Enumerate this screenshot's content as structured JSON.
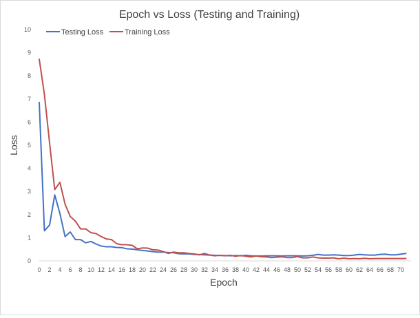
{
  "chart_data": {
    "type": "line",
    "title": "Epoch vs Loss (Testing and Training)",
    "xlabel": "Epoch",
    "ylabel": "Loss",
    "xlim": [
      0,
      72
    ],
    "ylim": [
      0,
      10
    ],
    "x_ticks": [
      0,
      2,
      4,
      6,
      8,
      10,
      12,
      14,
      16,
      18,
      20,
      22,
      24,
      26,
      28,
      30,
      32,
      34,
      36,
      38,
      40,
      42,
      44,
      46,
      48,
      50,
      52,
      54,
      56,
      58,
      60,
      62,
      64,
      66,
      68,
      70
    ],
    "y_ticks": [
      0,
      1,
      2,
      3,
      4,
      5,
      6,
      7,
      8,
      9,
      10
    ],
    "grid": false,
    "legend_position": "top-left",
    "x": [
      0,
      1,
      2,
      3,
      4,
      5,
      6,
      7,
      8,
      9,
      10,
      11,
      12,
      13,
      14,
      15,
      16,
      17,
      18,
      19,
      20,
      21,
      22,
      23,
      24,
      25,
      26,
      27,
      28,
      29,
      30,
      31,
      32,
      33,
      34,
      35,
      36,
      37,
      38,
      39,
      40,
      41,
      42,
      43,
      44,
      45,
      46,
      47,
      48,
      49,
      50,
      51,
      52,
      53,
      54,
      55,
      56,
      57,
      58,
      59,
      60,
      61,
      62,
      63,
      64,
      65,
      66,
      67,
      68,
      69,
      70,
      71
    ],
    "series": [
      {
        "name": "Testing Loss",
        "color": "#4472c4",
        "values": [
          6.85,
          1.3,
          1.55,
          2.85,
          2.05,
          1.05,
          1.25,
          0.92,
          0.92,
          0.78,
          0.84,
          0.73,
          0.64,
          0.61,
          0.61,
          0.58,
          0.57,
          0.52,
          0.51,
          0.48,
          0.45,
          0.43,
          0.4,
          0.38,
          0.38,
          0.36,
          0.35,
          0.31,
          0.3,
          0.3,
          0.28,
          0.27,
          0.26,
          0.25,
          0.24,
          0.23,
          0.23,
          0.22,
          0.23,
          0.22,
          0.24,
          0.22,
          0.21,
          0.21,
          0.22,
          0.22,
          0.22,
          0.21,
          0.22,
          0.22,
          0.22,
          0.21,
          0.22,
          0.24,
          0.28,
          0.25,
          0.25,
          0.26,
          0.25,
          0.23,
          0.23,
          0.25,
          0.28,
          0.26,
          0.25,
          0.25,
          0.28,
          0.29,
          0.26,
          0.26,
          0.29,
          0.32
        ]
      },
      {
        "name": "Training Loss",
        "color": "#c0504d",
        "values": [
          8.72,
          7.2,
          5.1,
          3.08,
          3.4,
          2.45,
          1.92,
          1.72,
          1.38,
          1.38,
          1.22,
          1.18,
          1.05,
          0.95,
          0.92,
          0.74,
          0.7,
          0.7,
          0.67,
          0.52,
          0.56,
          0.55,
          0.48,
          0.47,
          0.4,
          0.32,
          0.38,
          0.35,
          0.35,
          0.32,
          0.3,
          0.26,
          0.32,
          0.25,
          0.22,
          0.24,
          0.22,
          0.24,
          0.2,
          0.23,
          0.2,
          0.17,
          0.21,
          0.18,
          0.17,
          0.14,
          0.16,
          0.18,
          0.14,
          0.14,
          0.19,
          0.13,
          0.13,
          0.17,
          0.13,
          0.12,
          0.12,
          0.13,
          0.09,
          0.12,
          0.09,
          0.1,
          0.09,
          0.11,
          0.09,
          0.1,
          0.1,
          0.1,
          0.1,
          0.1,
          0.1,
          0.1
        ]
      }
    ]
  }
}
